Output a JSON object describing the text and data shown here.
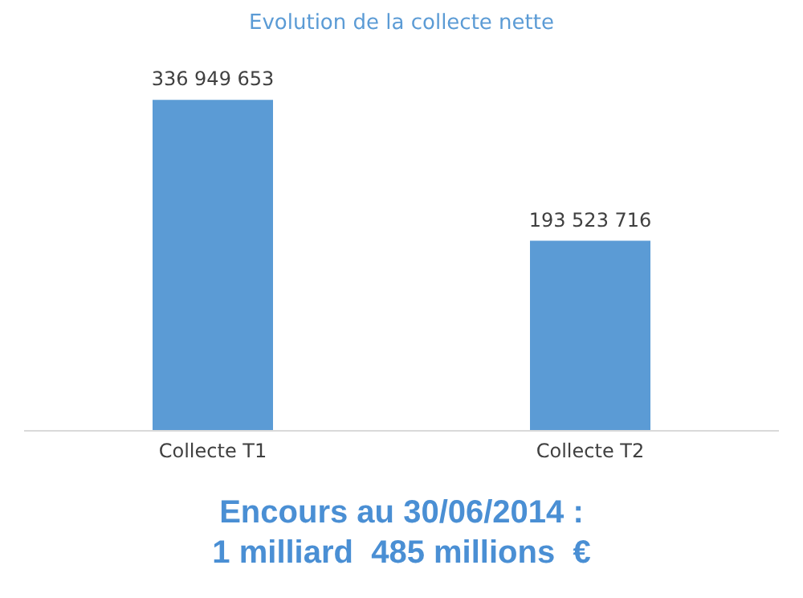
{
  "chart_data": {
    "type": "bar",
    "title": "Evolution de la collecte nette",
    "categories": [
      "Collecte T1",
      "Collecte T2"
    ],
    "values": [
      336949653,
      193523716
    ],
    "value_labels": [
      "336 949 653",
      "193 523 716"
    ],
    "color": "#5b9bd5",
    "annotations": [
      "Encours au 30/06/2014 :\n1 milliard  485 millions  €"
    ]
  }
}
